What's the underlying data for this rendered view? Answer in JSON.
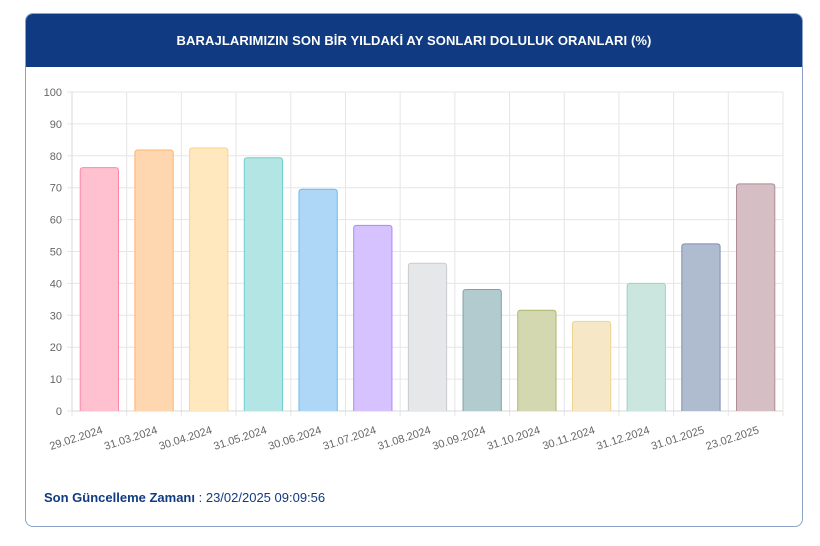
{
  "header": {
    "title": "BARAJLARIMIZIN SON BİR YILDAKİ AY SONLARI DOLULUK ORANLARI (%)"
  },
  "footer": {
    "label": "Son Güncelleme Zamanı",
    "separator": " : ",
    "value": "23/02/2025 09:09:56"
  },
  "colors": {
    "header_bg": "#103a82",
    "accent_text": "#103a82",
    "card_border": "#8da2c8",
    "grid": "#e6e6e6"
  },
  "chart_data": {
    "type": "bar",
    "title": "BARAJLARIMIZIN SON BİR YILDAKİ AY SONLARI DOLULUK ORANLARI (%)",
    "xlabel": "",
    "ylabel": "",
    "ylim": [
      0,
      100
    ],
    "yticks": [
      0,
      10,
      20,
      30,
      40,
      50,
      60,
      70,
      80,
      90,
      100
    ],
    "grid": true,
    "legend": "none",
    "categories": [
      "29.02.2024",
      "31.03.2024",
      "30.04.2024",
      "31.05.2024",
      "30.06.2024",
      "31.07.2024",
      "31.08.2024",
      "30.09.2024",
      "31.10.2024",
      "30.11.2024",
      "31.12.2024",
      "31.01.2025",
      "23.02.2025"
    ],
    "values": [
      76.3,
      81.8,
      82.5,
      79.4,
      69.5,
      58.2,
      46.3,
      38.1,
      31.6,
      28.1,
      40.0,
      52.4,
      71.2
    ],
    "bar_fill": [
      "#ffc0cf",
      "#fed6b0",
      "#ffe8bd",
      "#b3e5e5",
      "#aed7f7",
      "#d5c2ff",
      "#e6e7e9",
      "#b1cbcf",
      "#d3d8b1",
      "#f6e8c6",
      "#cbe6df",
      "#afbbce",
      "#d6bec5"
    ],
    "bar_border": [
      "#ff87a3",
      "#fdb46d",
      "#fdd38a",
      "#6fcfcf",
      "#6cb9ef",
      "#b186fb",
      "#c9cbcf",
      "#7ea3a9",
      "#adb86c",
      "#efd48e",
      "#a1d2c3",
      "#7e8fb1",
      "#b08b97"
    ]
  }
}
